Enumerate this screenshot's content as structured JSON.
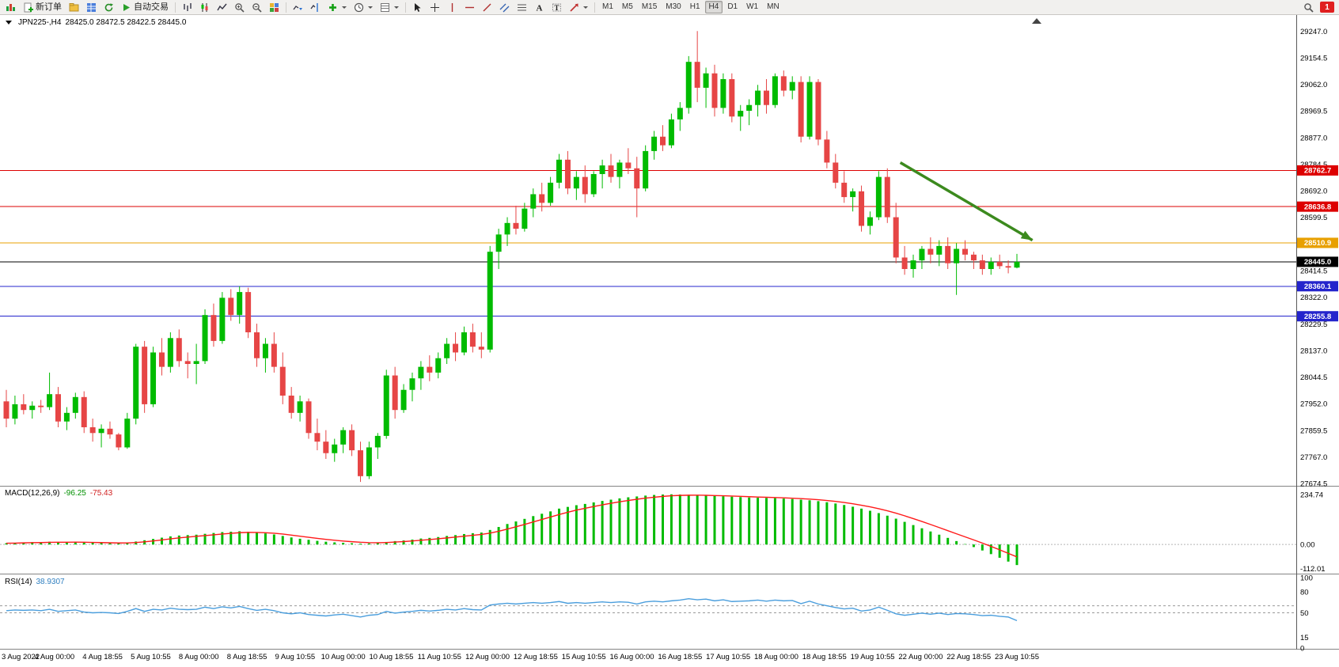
{
  "toolbar": {
    "new_order_label": "新订单",
    "autotrading_label": "自动交易",
    "timeframes": [
      "M1",
      "M5",
      "M15",
      "M30",
      "H1",
      "H4",
      "D1",
      "W1",
      "MN"
    ],
    "active_timeframe": "H4",
    "notification_badge": "1"
  },
  "chart": {
    "symbol_label": "JPN225-,H4",
    "ohlc_label": "28425.0 28472.5 28422.5 28445.0"
  },
  "chart_data": [
    {
      "type": "candlestick",
      "title": "JPN225-,H4",
      "current_bar_ohlc": "28425.0 28472.5 28422.5 28445.0",
      "up_color": "#00bb00",
      "down_color": "#e64545",
      "ylim": [
        27672,
        29300
      ],
      "y_ticks": [
        "29247.0",
        "29154.5",
        "29062.0",
        "28969.5",
        "28877.0",
        "28784.5",
        "28692.0",
        "28599.5",
        "28507.0",
        "28414.5",
        "28322.0",
        "28229.5",
        "28137.0",
        "28044.5",
        "27952.0",
        "27859.5",
        "27767.0",
        "27674.5"
      ],
      "x_labels": [
        "3 Aug 2022",
        "4 Aug 00:00",
        "4 Aug 18:55",
        "5 Aug 10:55",
        "8 Aug 00:00",
        "8 Aug 18:55",
        "9 Aug 10:55",
        "10 Aug 00:00",
        "10 Aug 18:55",
        "11 Aug 10:55",
        "12 Aug 00:00",
        "12 Aug 18:55",
        "15 Aug 10:55",
        "16 Aug 00:00",
        "16 Aug 18:55",
        "17 Aug 10:55",
        "18 Aug 00:00",
        "18 Aug 18:55",
        "19 Aug 10:55",
        "22 Aug 00:00",
        "22 Aug 18:55",
        "23 Aug 10:55"
      ],
      "hlines": [
        {
          "value": 28762.7,
          "label": "28762.7",
          "color": "#dd0000"
        },
        {
          "value": 28636.8,
          "label": "28636.8",
          "color": "#dd0000"
        },
        {
          "value": 28510.9,
          "label": "28510.9",
          "color": "#e8a000"
        },
        {
          "value": 28445.0,
          "label": "28445.0",
          "color": "#000000",
          "is_price": true
        },
        {
          "value": 28360.1,
          "label": "28360.1",
          "color": "#2424cc"
        },
        {
          "value": 28255.8,
          "label": "28255.8",
          "color": "#2424cc"
        }
      ],
      "trend_arrow": {
        "start_index": 103.5,
        "start_price": 28790,
        "end_index": 118.8,
        "end_price": 28520,
        "color": "#3c8a1e"
      },
      "ohlc": [
        [
          27960,
          28000,
          27870,
          27900
        ],
        [
          27900,
          27980,
          27880,
          27950
        ],
        [
          27950,
          27985,
          27915,
          27930
        ],
        [
          27930,
          27960,
          27900,
          27945
        ],
        [
          27945,
          27965,
          27920,
          27940
        ],
        [
          27940,
          28060,
          27930,
          27985
        ],
        [
          27985,
          28010,
          27870,
          27890
        ],
        [
          27890,
          27940,
          27860,
          27920
        ],
        [
          27920,
          27990,
          27900,
          27975
        ],
        [
          27975,
          27995,
          27850,
          27870
        ],
        [
          27870,
          27900,
          27820,
          27850
        ],
        [
          27850,
          27880,
          27800,
          27865
        ],
        [
          27865,
          27890,
          27830,
          27845
        ],
        [
          27845,
          27850,
          27790,
          27800
        ],
        [
          27800,
          27920,
          27795,
          27900
        ],
        [
          27900,
          28160,
          27880,
          28150
        ],
        [
          28150,
          28170,
          27920,
          27950
        ],
        [
          27950,
          28150,
          27940,
          28130
        ],
        [
          28130,
          28180,
          28050,
          28080
        ],
        [
          28080,
          28200,
          28060,
          28180
        ],
        [
          28180,
          28210,
          28080,
          28100
        ],
        [
          28100,
          28130,
          28040,
          28090
        ],
        [
          28090,
          28160,
          28020,
          28100
        ],
        [
          28100,
          28280,
          28090,
          28260
        ],
        [
          28260,
          28300,
          28150,
          28170
        ],
        [
          28170,
          28340,
          28160,
          28320
        ],
        [
          28320,
          28350,
          28240,
          28260
        ],
        [
          28260,
          28360,
          28230,
          28340
        ],
        [
          28340,
          28355,
          28180,
          28200
        ],
        [
          28200,
          28230,
          28080,
          28110
        ],
        [
          28110,
          28180,
          28060,
          28160
        ],
        [
          28160,
          28200,
          28060,
          28080
        ],
        [
          28080,
          28130,
          27950,
          27980
        ],
        [
          27980,
          28010,
          27900,
          27920
        ],
        [
          27920,
          27980,
          27890,
          27960
        ],
        [
          27960,
          27970,
          27830,
          27850
        ],
        [
          27850,
          27900,
          27790,
          27820
        ],
        [
          27820,
          27860,
          27760,
          27780
        ],
        [
          27780,
          27830,
          27750,
          27810
        ],
        [
          27810,
          27870,
          27780,
          27860
        ],
        [
          27860,
          27880,
          27770,
          27790
        ],
        [
          27790,
          27820,
          27680,
          27700
        ],
        [
          27700,
          27820,
          27690,
          27800
        ],
        [
          27800,
          27850,
          27760,
          27840
        ],
        [
          27840,
          28070,
          27830,
          28050
        ],
        [
          28050,
          28080,
          27900,
          27930
        ],
        [
          27930,
          28020,
          27920,
          28000
        ],
        [
          28000,
          28060,
          27960,
          28040
        ],
        [
          28040,
          28100,
          28000,
          28080
        ],
        [
          28080,
          28120,
          28030,
          28060
        ],
        [
          28060,
          28130,
          28040,
          28110
        ],
        [
          28110,
          28180,
          28090,
          28160
        ],
        [
          28160,
          28200,
          28100,
          28130
        ],
        [
          28130,
          28220,
          28120,
          28200
        ],
        [
          28200,
          28230,
          28130,
          28150
        ],
        [
          28150,
          28200,
          28110,
          28140
        ],
        [
          28140,
          28500,
          28130,
          28480
        ],
        [
          28480,
          28560,
          28420,
          28540
        ],
        [
          28540,
          28600,
          28500,
          28580
        ],
        [
          28580,
          28640,
          28540,
          28560
        ],
        [
          28560,
          28650,
          28550,
          28630
        ],
        [
          28630,
          28700,
          28600,
          28680
        ],
        [
          28680,
          28720,
          28620,
          28650
        ],
        [
          28650,
          28740,
          28640,
          28720
        ],
        [
          28720,
          28820,
          28700,
          28800
        ],
        [
          28800,
          28830,
          28680,
          28700
        ],
        [
          28700,
          28760,
          28660,
          28740
        ],
        [
          28740,
          28780,
          28650,
          28680
        ],
        [
          28680,
          28760,
          28670,
          28750
        ],
        [
          28750,
          28800,
          28700,
          28780
        ],
        [
          28780,
          28820,
          28720,
          28740
        ],
        [
          28740,
          28800,
          28700,
          28790
        ],
        [
          28790,
          28840,
          28750,
          28770
        ],
        [
          28770,
          28810,
          28600,
          28700
        ],
        [
          28700,
          28850,
          28690,
          28830
        ],
        [
          28830,
          28900,
          28800,
          28880
        ],
        [
          28880,
          28920,
          28830,
          28850
        ],
        [
          28850,
          28960,
          28840,
          28940
        ],
        [
          28940,
          29000,
          28900,
          28980
        ],
        [
          28980,
          29160,
          28960,
          29140
        ],
        [
          29140,
          29247,
          29000,
          29050
        ],
        [
          29050,
          29120,
          28980,
          29100
        ],
        [
          29100,
          29130,
          28950,
          28980
        ],
        [
          28980,
          29100,
          28960,
          29080
        ],
        [
          29080,
          29100,
          28930,
          28950
        ],
        [
          28950,
          28990,
          28900,
          28970
        ],
        [
          28970,
          29010,
          28920,
          28990
        ],
        [
          28990,
          29060,
          28950,
          29040
        ],
        [
          29040,
          29080,
          28960,
          28990
        ],
        [
          28990,
          29100,
          28980,
          29090
        ],
        [
          29090,
          29110,
          29020,
          29040
        ],
        [
          29040,
          29090,
          29010,
          29070
        ],
        [
          29070,
          29090,
          28860,
          28880
        ],
        [
          28880,
          29090,
          28870,
          29070
        ],
        [
          29070,
          29080,
          28850,
          28870
        ],
        [
          28870,
          28900,
          28770,
          28790
        ],
        [
          28790,
          28820,
          28700,
          28720
        ],
        [
          28720,
          28760,
          28650,
          28670
        ],
        [
          28670,
          28700,
          28620,
          28690
        ],
        [
          28690,
          28710,
          28550,
          28570
        ],
        [
          28570,
          28620,
          28540,
          28600
        ],
        [
          28600,
          28760,
          28590,
          28740
        ],
        [
          28740,
          28770,
          28580,
          28600
        ],
        [
          28600,
          28650,
          28440,
          28460
        ],
        [
          28460,
          28500,
          28400,
          28420
        ],
        [
          28420,
          28470,
          28390,
          28450
        ],
        [
          28450,
          28500,
          28420,
          28490
        ],
        [
          28490,
          28530,
          28440,
          28470
        ],
        [
          28470,
          28520,
          28430,
          28500
        ],
        [
          28500,
          28530,
          28420,
          28440
        ],
        [
          28440,
          28510,
          28330,
          28490
        ],
        [
          28490,
          28520,
          28450,
          28470
        ],
        [
          28470,
          28480,
          28420,
          28450
        ],
        [
          28450,
          28470,
          28400,
          28420
        ],
        [
          28420,
          28460,
          28400,
          28445
        ],
        [
          28445,
          28470,
          28420,
          28430
        ],
        [
          28430,
          28450,
          28405,
          28425
        ],
        [
          28425,
          28472.5,
          28422.5,
          28445
        ]
      ]
    },
    {
      "type": "bar",
      "title": "MACD(12,26,9)",
      "macd_value": "-96.25",
      "signal_value": "-75.43",
      "bar_color": "#00bb00",
      "signal_color": "#ff1a1a",
      "ylim": [
        -129,
        260
      ],
      "y_ticks": [
        "234.74",
        "0.00",
        "-112.01"
      ],
      "histogram": [
        6,
        8,
        10,
        11,
        10,
        13,
        12,
        10,
        12,
        10,
        8,
        7,
        6,
        5,
        8,
        14,
        20,
        26,
        32,
        38,
        42,
        44,
        46,
        50,
        54,
        58,
        60,
        62,
        60,
        56,
        52,
        47,
        40,
        33,
        27,
        22,
        17,
        13,
        10,
        8,
        6,
        4,
        5,
        7,
        12,
        16,
        19,
        23,
        28,
        31,
        35,
        40,
        44,
        49,
        53,
        56,
        68,
        82,
        96,
        108,
        120,
        133,
        144,
        155,
        168,
        176,
        184,
        190,
        197,
        204,
        210,
        216,
        221,
        225,
        229,
        232,
        234,
        235,
        234,
        233,
        231,
        229,
        227,
        226,
        224,
        222,
        220,
        219,
        218,
        217,
        215,
        213,
        210,
        207,
        203,
        198,
        192,
        185,
        177,
        168,
        158,
        147,
        135,
        121,
        106,
        91,
        76,
        61,
        46,
        31,
        16,
        2,
        -12,
        -28,
        -45,
        -62,
        -80,
        -96.25
      ]
    },
    {
      "type": "line",
      "title": "RSI(14)",
      "value": "38.9307",
      "line_color": "#4a9edd",
      "ylim": [
        0,
        100
      ],
      "y_ticks": [
        "100",
        "80",
        "50",
        "15",
        "0"
      ],
      "levels": [
        60,
        50
      ],
      "values": [
        53,
        54,
        53.5,
        54,
        53,
        55,
        52,
        53,
        54,
        51,
        50,
        50.5,
        50,
        49,
        52,
        56,
        52,
        55,
        54,
        56.5,
        55,
        54.5,
        55,
        58,
        56,
        58.5,
        57,
        59,
        56,
        53.5,
        55,
        53,
        50,
        48.5,
        50,
        47.5,
        46.5,
        45.5,
        47,
        48,
        46,
        44,
        46.5,
        47.5,
        52,
        49.5,
        51,
        52,
        53.5,
        52.5,
        53.5,
        55,
        54,
        56,
        54.5,
        54,
        61,
        62.5,
        63.5,
        62.5,
        63.5,
        64.5,
        63.5,
        64.5,
        66,
        63.5,
        64.5,
        63.5,
        64.5,
        65.5,
        64.5,
        65.5,
        65,
        62.5,
        65.5,
        66.5,
        65.5,
        67,
        68,
        70,
        68.5,
        69.5,
        67,
        68.5,
        66,
        66.5,
        67,
        68,
        66.5,
        68,
        67,
        67.5,
        63,
        66.5,
        62.5,
        60,
        57.5,
        55.5,
        56.5,
        52.5,
        54,
        58,
        53.5,
        48.5,
        46.5,
        48,
        49.5,
        48,
        49.5,
        47.5,
        49,
        48.5,
        47.5,
        46,
        46.5,
        45,
        44,
        38.93
      ]
    }
  ]
}
